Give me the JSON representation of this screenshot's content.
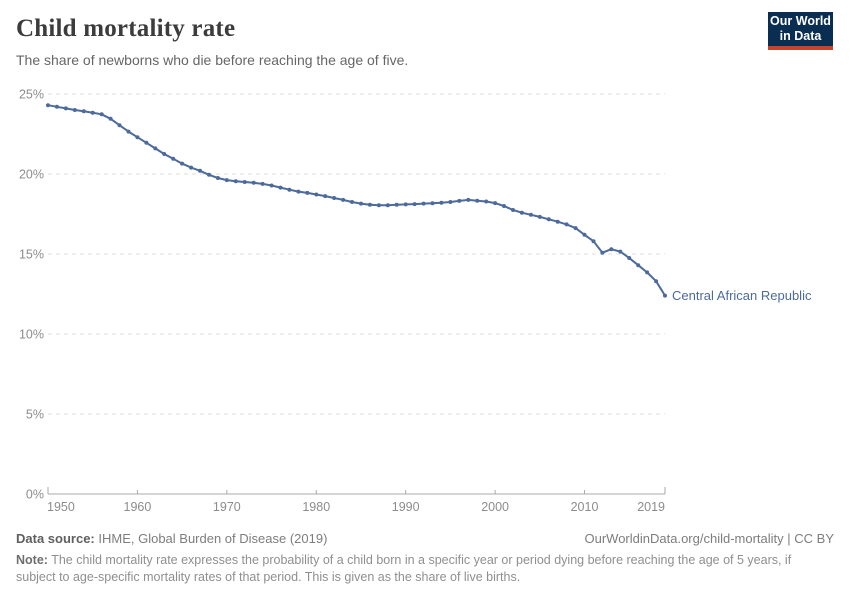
{
  "header": {
    "title": "Child mortality rate",
    "subtitle": "The share of newborns who die before reaching the age of five.",
    "logo": {
      "line1": "Our World",
      "line2": "in Data"
    }
  },
  "footer": {
    "source_label": "Data source:",
    "source_text": " IHME, Global Burden of Disease (2019)",
    "link_text": "OurWorldinData.org/child-mortality | CC BY",
    "note_label": "Note:",
    "note_text": " The child mortality rate expresses the probability of a child born in a specific year or period dying before reaching the age of 5 years, if subject to age-specific mortality rates of that period. This is given as the share of live births."
  },
  "colors": {
    "series_line": "#4C6A9C",
    "logo_background": "#0a2d52",
    "logo_red_bar": "#c5432d",
    "gridline": "#dcdcdc",
    "axis": "#a8a8a8",
    "tick_text": "#8c8c8c"
  },
  "chart_data": {
    "type": "line",
    "title": "Child mortality rate",
    "xlabel": "",
    "ylabel": "",
    "xlim": [
      1950,
      2019
    ],
    "ylim": [
      0,
      25
    ],
    "grid": "horizontal-dashed",
    "legend_position": "end-of-line-label",
    "y_ticks": [
      {
        "value": 0,
        "label": "0%"
      },
      {
        "value": 5,
        "label": "5%"
      },
      {
        "value": 10,
        "label": "10%"
      },
      {
        "value": 15,
        "label": "15%"
      },
      {
        "value": 20,
        "label": "20%"
      },
      {
        "value": 25,
        "label": "25%"
      }
    ],
    "x_ticks": [
      1950,
      1960,
      1970,
      1980,
      1990,
      2000,
      2010,
      2019
    ],
    "series": [
      {
        "name": "Central African Republic",
        "color": "#4C6A9C",
        "marker": "dot",
        "x": [
          1950,
          1951,
          1952,
          1953,
          1954,
          1955,
          1956,
          1957,
          1958,
          1959,
          1960,
          1961,
          1962,
          1963,
          1964,
          1965,
          1966,
          1967,
          1968,
          1969,
          1970,
          1971,
          1972,
          1973,
          1974,
          1975,
          1976,
          1977,
          1978,
          1979,
          1980,
          1981,
          1982,
          1983,
          1984,
          1985,
          1986,
          1987,
          1988,
          1989,
          1990,
          1991,
          1992,
          1993,
          1994,
          1995,
          1996,
          1997,
          1998,
          1999,
          2000,
          2001,
          2002,
          2003,
          2004,
          2005,
          2006,
          2007,
          2008,
          2009,
          2010,
          2011,
          2012,
          2013,
          2014,
          2015,
          2016,
          2017,
          2018,
          2019
        ],
        "values": [
          24.3,
          24.2,
          24.1,
          24.0,
          23.92,
          23.83,
          23.73,
          23.45,
          23.05,
          22.65,
          22.3,
          21.95,
          21.6,
          21.25,
          20.95,
          20.65,
          20.4,
          20.2,
          19.95,
          19.75,
          19.62,
          19.55,
          19.5,
          19.45,
          19.38,
          19.28,
          19.15,
          19.02,
          18.9,
          18.82,
          18.72,
          18.62,
          18.5,
          18.38,
          18.25,
          18.15,
          18.08,
          18.05,
          18.05,
          18.08,
          18.1,
          18.12,
          18.15,
          18.17,
          18.2,
          18.25,
          18.32,
          18.38,
          18.33,
          18.28,
          18.18,
          18.0,
          17.75,
          17.58,
          17.45,
          17.32,
          17.17,
          17.02,
          16.85,
          16.62,
          16.2,
          15.8,
          15.08,
          15.3,
          15.15,
          14.75,
          14.3,
          13.85,
          13.3,
          12.4
        ]
      }
    ]
  }
}
